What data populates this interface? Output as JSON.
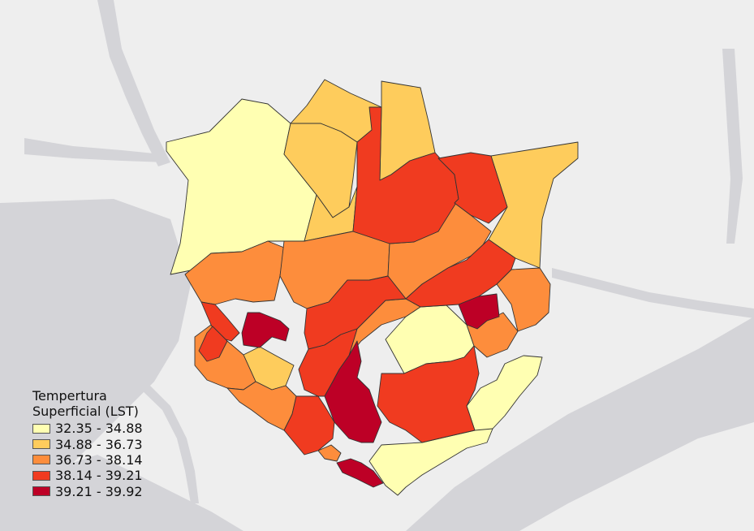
{
  "legend": {
    "title_line1": "Tempertura",
    "title_line2": "Superficial (LST)",
    "classes": [
      {
        "label": "32.35 - 34.88",
        "color": "#ffffb2"
      },
      {
        "label": "34.88 - 36.73",
        "color": "#fecc5c"
      },
      {
        "label": "36.73 - 38.14",
        "color": "#fd8d3c"
      },
      {
        "label": "38.14 - 39.21",
        "color": "#f03b20"
      },
      {
        "label": "39.21 - 39.92",
        "color": "#bd0026"
      }
    ]
  },
  "colors": {
    "background": "#eeeeee",
    "water": "#d4d4d8",
    "boundary": "#333333"
  }
}
